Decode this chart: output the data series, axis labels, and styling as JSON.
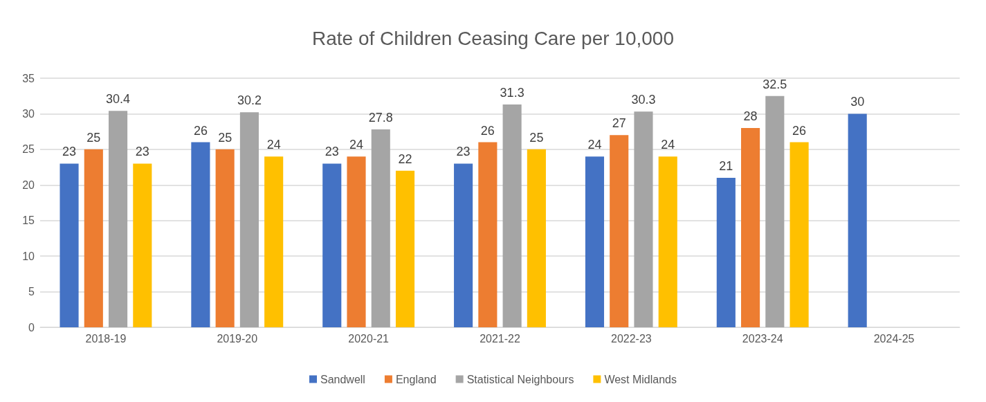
{
  "chart_data": {
    "type": "bar",
    "title": "Rate of Children Ceasing Care per 10,000",
    "categories": [
      "2018-19",
      "2019-20",
      "2020-21",
      "2021-22",
      "2022-23",
      "2023-24",
      "2024-25"
    ],
    "series": [
      {
        "name": "Sandwell",
        "color": "#4472c4",
        "values": [
          23,
          26,
          23,
          23,
          24,
          21,
          30
        ]
      },
      {
        "name": "England",
        "color": "#ed7d31",
        "values": [
          25,
          25,
          24,
          26,
          27,
          28,
          null
        ]
      },
      {
        "name": "Statistical Neighbours",
        "color": "#a5a5a5",
        "values": [
          30.4,
          30.2,
          27.8,
          31.3,
          30.3,
          32.5,
          null
        ]
      },
      {
        "name": "West Midlands",
        "color": "#ffc000",
        "values": [
          23,
          24,
          22,
          25,
          24,
          26,
          null
        ]
      }
    ],
    "ylim": [
      0,
      35
    ],
    "yticks": [
      0,
      5,
      10,
      15,
      20,
      25,
      30,
      35
    ],
    "grid": "y",
    "legend": "bottom",
    "data_labels": true
  }
}
